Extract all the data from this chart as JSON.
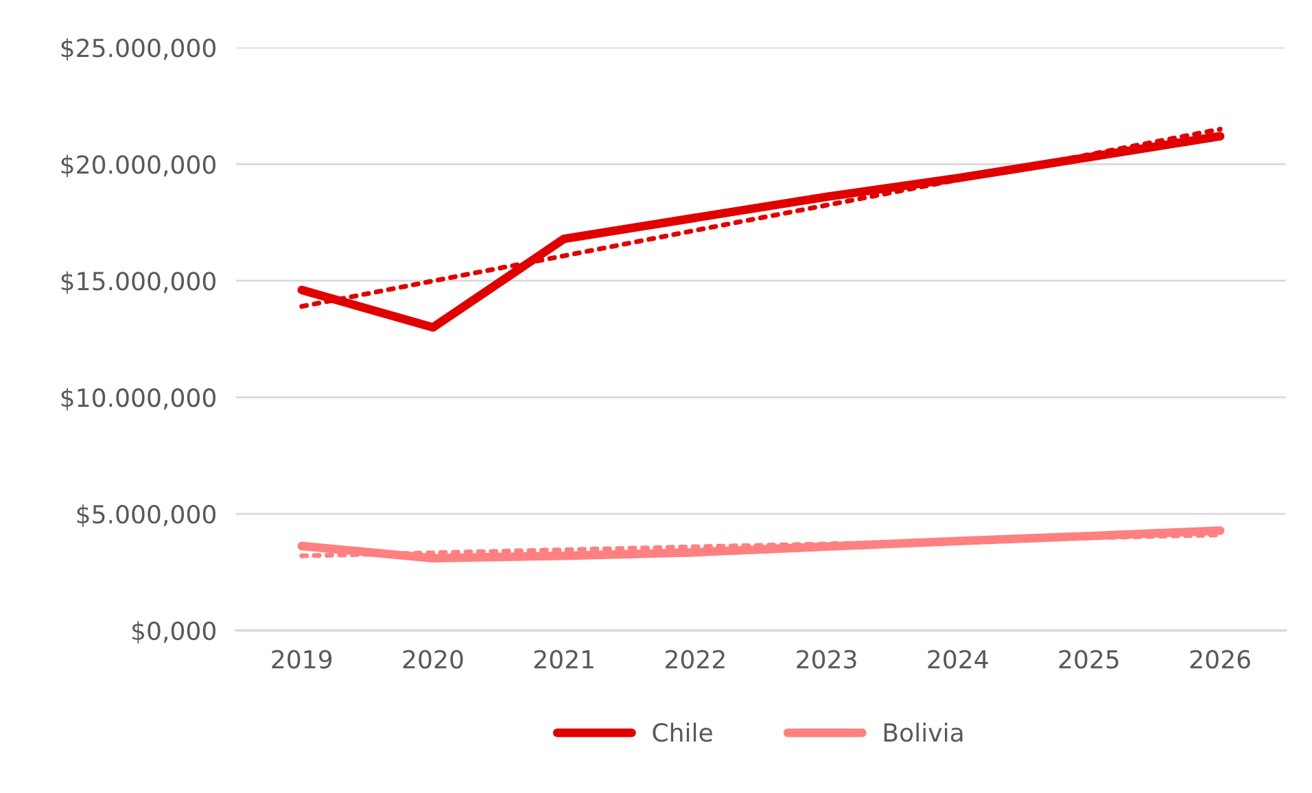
{
  "chart_data": {
    "type": "line",
    "categories": [
      "2019",
      "2020",
      "2021",
      "2022",
      "2023",
      "2024",
      "2025",
      "2026"
    ],
    "series": [
      {
        "name": "Chile",
        "color": "#e00000",
        "values": [
          14600,
          13000,
          16800,
          17700,
          18600,
          19400,
          20300,
          21200
        ]
      },
      {
        "name": "Bolivia",
        "color": "#ff8080",
        "values": [
          3620,
          3100,
          3200,
          3350,
          3600,
          3830,
          4050,
          4280
        ]
      },
      {
        "color": "#e00000",
        "line_style": "dotted",
        "values": [
          13900,
          14990,
          16070,
          17160,
          18240,
          19330,
          20410,
          21500
        ]
      },
      {
        "color": "#ff8080",
        "line_style": "dotted",
        "values": [
          3200,
          3330,
          3460,
          3590,
          3710,
          3840,
          3970,
          4100
        ]
      }
    ],
    "ylim": [
      0,
      25000
    ],
    "yticks": [
      {
        "value": 0,
        "label": "$0,000"
      },
      {
        "value": 5000,
        "label": "$5.000,000"
      },
      {
        "value": 10000,
        "label": "$10.000,000"
      },
      {
        "value": 15000,
        "label": "$15.000,000"
      },
      {
        "value": 20000,
        "label": "$20.000,000"
      },
      {
        "value": 25000,
        "label": "$25.000,000"
      }
    ],
    "grid": "y",
    "legend": "bottom",
    "line_style": "solid"
  }
}
